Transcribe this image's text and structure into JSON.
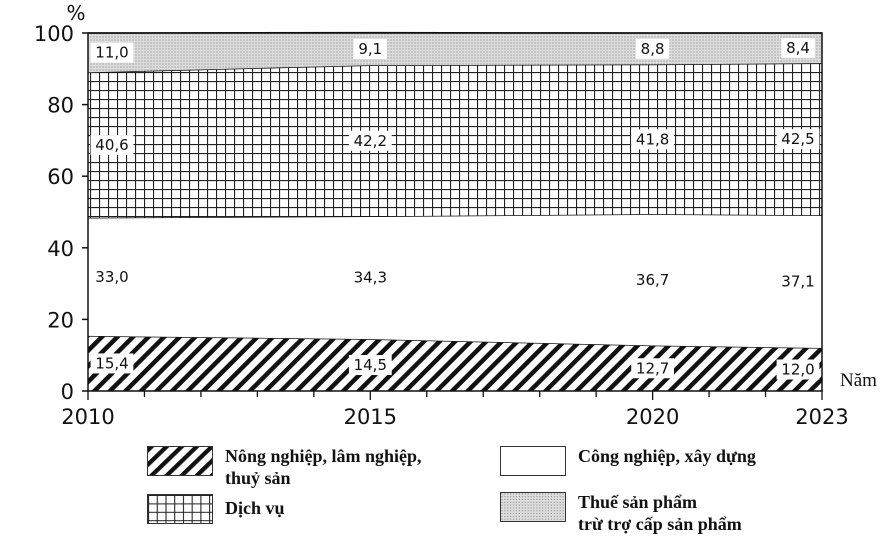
{
  "chart_data": {
    "type": "area",
    "stacked": true,
    "y_unit_label": "%",
    "x_axis_label": "Năm",
    "x": [
      2010,
      2015,
      2020,
      2023
    ],
    "x_tick_labels": [
      "2010",
      "2015",
      "2020",
      "2023"
    ],
    "ylim": [
      0,
      100
    ],
    "y_ticks": [
      0,
      20,
      40,
      60,
      80,
      100
    ],
    "y_tick_labels": [
      "0",
      "20",
      "40",
      "60",
      "80",
      "100"
    ],
    "grid": false,
    "legend_position": "bottom",
    "series": [
      {
        "name": "Nông nghiệp, lâm nghiệp, thuỷ sản",
        "pattern": "diagonal-hatch",
        "values": [
          15.4,
          14.5,
          12.7,
          12.0
        ],
        "value_labels": [
          "15,4",
          "14,5",
          "12,7",
          "12,0"
        ]
      },
      {
        "name": "Công nghiệp, xây dựng",
        "pattern": "blank",
        "values": [
          33.0,
          34.3,
          36.7,
          37.1
        ],
        "value_labels": [
          "33,0",
          "34,3",
          "36,7",
          "37,1"
        ]
      },
      {
        "name": "Dịch vụ",
        "pattern": "grid",
        "values": [
          40.6,
          42.2,
          41.8,
          42.5
        ],
        "value_labels": [
          "40,6",
          "42,2",
          "41,8",
          "42,5"
        ]
      },
      {
        "name": "Thuế sản phẩm trừ trợ cấp sản phẩm",
        "pattern": "dots",
        "values": [
          11.0,
          9.1,
          8.8,
          8.4
        ],
        "value_labels": [
          "11,0",
          "9,1",
          "8,8",
          "8,4"
        ]
      }
    ]
  },
  "legend": [
    {
      "line1": "Nông nghiệp, lâm nghiệp,",
      "line2": "thuỷ sản"
    },
    {
      "line1": "Công nghiệp, xây dựng",
      "line2": ""
    },
    {
      "line1": "Dịch vụ",
      "line2": ""
    },
    {
      "line1": "Thuế sản phẩm",
      "line2": "trừ trợ cấp sản phẩm"
    }
  ],
  "colors": {
    "ink": "#111111",
    "dot_fill": "#dcdcdc",
    "background": "#ffffff"
  }
}
